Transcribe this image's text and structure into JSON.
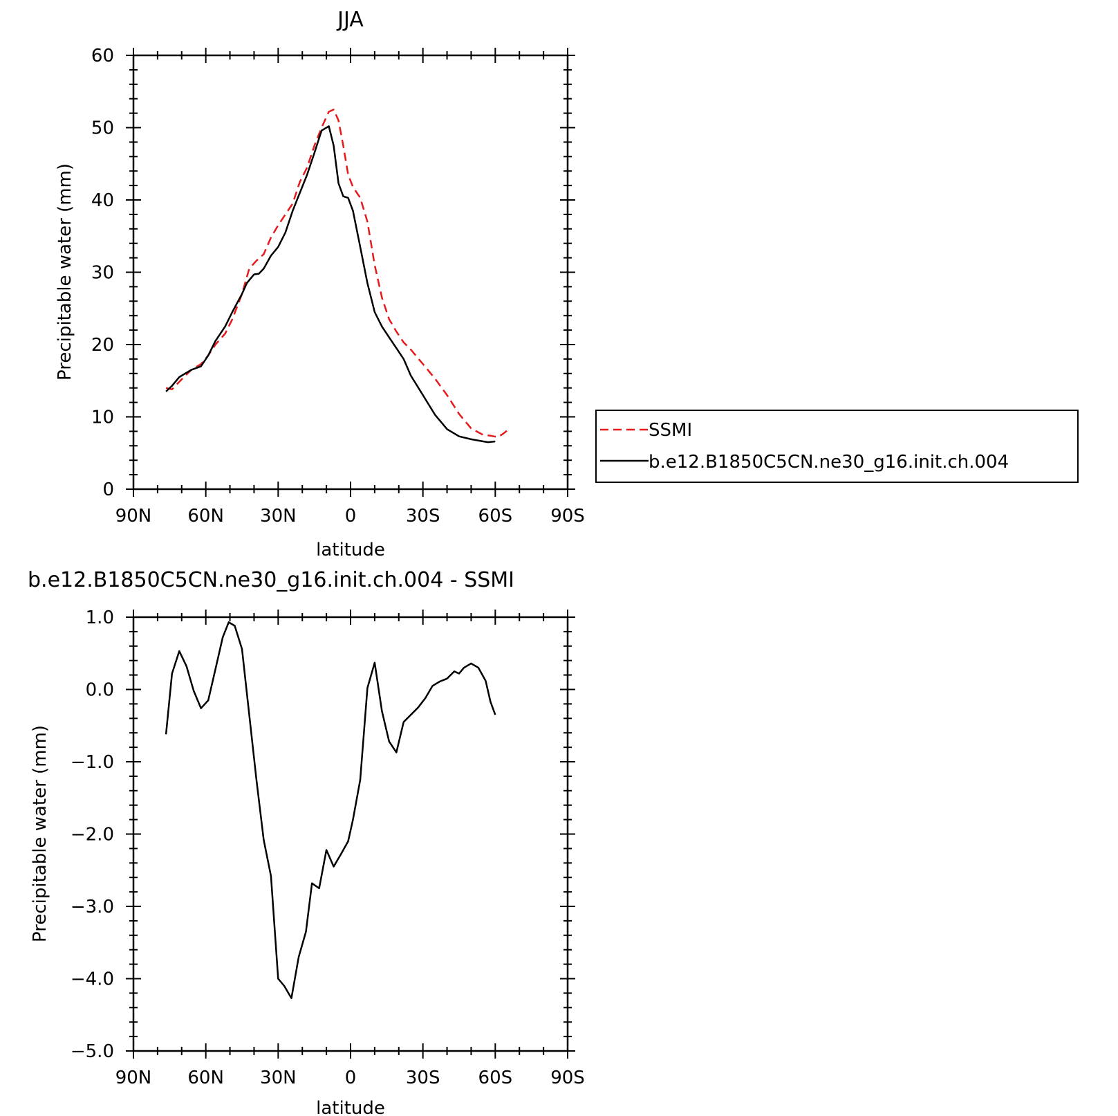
{
  "chart_data": [
    {
      "type": "line",
      "title": "JJA",
      "xlabel": "latitude",
      "ylabel": "Precipitable water (mm)",
      "xlim": [
        90,
        -90
      ],
      "ylim": [
        0,
        60
      ],
      "yticks": [
        0,
        10,
        20,
        30,
        40,
        50,
        60
      ],
      "ytick_labels": [
        "0",
        "10",
        "20",
        "30",
        "40",
        "50",
        "60"
      ],
      "xticks": [
        90,
        60,
        30,
        0,
        -30,
        -60,
        -90
      ],
      "xtick_labels": [
        "90N",
        "60N",
        "30N",
        "0",
        "30S",
        "60S",
        "90S"
      ],
      "grid": false,
      "legend_position": "right",
      "series": [
        {
          "name": "SSMI",
          "color": "#e41a1c",
          "dash": "dashed",
          "x": [
            76.5,
            74,
            70,
            66,
            62,
            59,
            56,
            52,
            49,
            45,
            42,
            39,
            36,
            33,
            30,
            27,
            24,
            21,
            18,
            15,
            12,
            9,
            7,
            5,
            3,
            1,
            -1,
            -4,
            -7,
            -10,
            -13,
            -16,
            -19,
            -22,
            -25,
            -30,
            -35,
            -40,
            -45,
            -50,
            -55,
            -58,
            -61,
            -63,
            -66
          ],
          "y": [
            14.0,
            13.8,
            15.2,
            16.5,
            17.3,
            18.5,
            20.0,
            21.5,
            23.5,
            27.0,
            30.5,
            31.6,
            32.5,
            34.8,
            36.5,
            38.0,
            39.5,
            42.5,
            44.5,
            47.5,
            50.0,
            52.2,
            52.5,
            51.0,
            47.5,
            43.5,
            41.8,
            40.3,
            37.0,
            31.0,
            26.5,
            23.5,
            21.8,
            20.3,
            19.3,
            17.3,
            15.3,
            13.0,
            10.4,
            8.4,
            7.5,
            7.4,
            7.2,
            7.6,
            8.4
          ]
        },
        {
          "name": "b.e12.B1850C5CN.ne30_g16.init.ch.004",
          "color": "#000000",
          "dash": "solid",
          "x": [
            76.5,
            74,
            71,
            66,
            62,
            59,
            56,
            52,
            49,
            45,
            43,
            40,
            38,
            36,
            33,
            30,
            27,
            24,
            21,
            18,
            15,
            12,
            9,
            7,
            5,
            3,
            1,
            -1,
            -4,
            -7,
            -10,
            -13,
            -16,
            -19,
            -22,
            -25,
            -30,
            -35,
            -40,
            -45,
            -50,
            -55,
            -57,
            -60
          ],
          "y": [
            13.5,
            14.3,
            15.5,
            16.5,
            17.0,
            18.5,
            20.5,
            22.5,
            24.5,
            27.0,
            28.5,
            29.7,
            29.8,
            30.5,
            32.3,
            33.5,
            35.5,
            38.5,
            41.0,
            43.5,
            46.5,
            49.6,
            50.2,
            47.5,
            42.3,
            40.5,
            40.3,
            38.5,
            33.5,
            28.5,
            24.5,
            22.5,
            21.0,
            19.5,
            18.0,
            15.7,
            13.0,
            10.3,
            8.3,
            7.3,
            6.9,
            6.6,
            6.5,
            6.6
          ]
        }
      ]
    },
    {
      "type": "line",
      "title": "b.e12.B1850C5CN.ne30_g16.init.ch.004 - SSMI",
      "xlabel": "latitude",
      "ylabel": "Precipitable water (mm)",
      "xlim": [
        90,
        -90
      ],
      "ylim": [
        -5.0,
        1.0
      ],
      "yticks": [
        -5.0,
        -4.0,
        -3.0,
        -2.0,
        -1.0,
        0.0,
        1.0
      ],
      "ytick_labels": [
        "-5.0",
        "-4.0",
        "-3.0",
        "-2.0",
        "-1.0",
        "0.0",
        "1.0"
      ],
      "xticks": [
        90,
        60,
        30,
        0,
        -30,
        -60,
        -90
      ],
      "xtick_labels": [
        "90N",
        "60N",
        "30N",
        "0",
        "30S",
        "60S",
        "90S"
      ],
      "grid": false,
      "series": [
        {
          "color": "#000000",
          "dash": "solid",
          "x": [
            76.5,
            74,
            71,
            68,
            65,
            62,
            59,
            56,
            53,
            50.5,
            48,
            45,
            42,
            39,
            36,
            33,
            30,
            27.5,
            24.5,
            21.5,
            18.5,
            16,
            13,
            10,
            7,
            4,
            1,
            -1,
            -4,
            -7,
            -10,
            -13,
            -16,
            -19,
            -22,
            -25,
            -28,
            -31,
            -34,
            -37,
            -40,
            -43,
            -45,
            -47,
            -50,
            -53,
            -56,
            -58,
            -60
          ],
          "y": [
            -0.62,
            0.22,
            0.53,
            0.32,
            -0.02,
            -0.26,
            -0.15,
            0.28,
            0.72,
            0.93,
            0.88,
            0.56,
            -0.35,
            -1.25,
            -2.08,
            -2.58,
            -4.0,
            -4.1,
            -4.27,
            -3.7,
            -3.35,
            -2.68,
            -2.75,
            -2.22,
            -2.45,
            -2.28,
            -2.1,
            -1.8,
            -1.25,
            0.02,
            0.37,
            -0.3,
            -0.72,
            -0.87,
            -0.45,
            -0.35,
            -0.25,
            -0.12,
            0.05,
            0.11,
            0.15,
            0.25,
            0.22,
            0.3,
            0.36,
            0.3,
            0.12,
            -0.17,
            -0.35
          ]
        }
      ]
    }
  ]
}
